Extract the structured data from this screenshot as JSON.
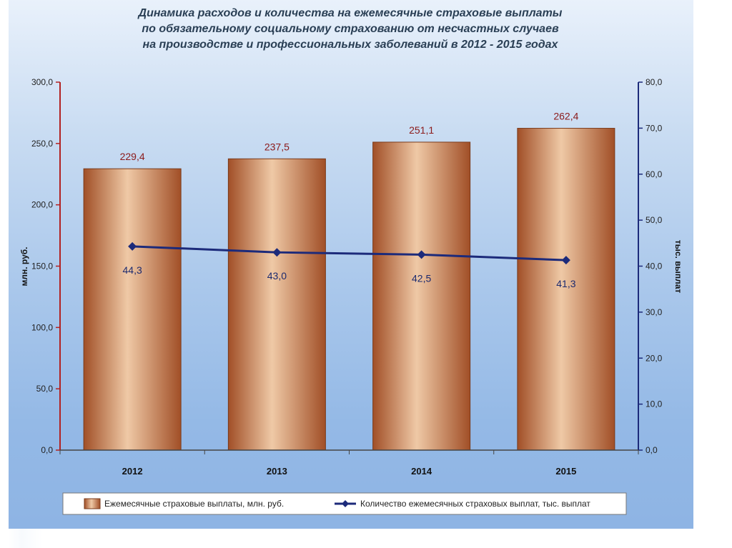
{
  "title_lines": [
    "Динамика расходов и количества на ежемесячные страховые выплаты",
    "по обязательному социальному страхованию от несчастных случаев",
    "на производстве и профессиональных заболеваний в 2012 - 2015 годах"
  ],
  "colors": {
    "bar_light": "#efc9a6",
    "bar_dark": "#a14f27",
    "line": "#1c2a7a",
    "left_axis": "#b22222",
    "right_axis": "#1c2a7a"
  },
  "chart_data": {
    "type": "bar",
    "categories": [
      "2012",
      "2013",
      "2014",
      "2015"
    ],
    "series": [
      {
        "name": "Ежемесячные страховые выплаты, млн. руб.",
        "type": "bar",
        "axis": "left",
        "values": [
          229.4,
          237.5,
          251.1,
          262.4
        ],
        "labels": [
          "229,4",
          "237,5",
          "251,1",
          "262,4"
        ]
      },
      {
        "name": "Количество ежемесячных страховых выплат, тыс. выплат",
        "type": "line",
        "axis": "right",
        "values": [
          44.3,
          43.0,
          42.5,
          41.3
        ],
        "labels": [
          "44,3",
          "43,0",
          "42,5",
          "41,3"
        ]
      }
    ],
    "left_axis": {
      "label": "млн. руб.",
      "ylim": [
        0,
        300
      ],
      "ticks": [
        "0,0",
        "50,0",
        "100,0",
        "150,0",
        "200,0",
        "250,0",
        "300,0"
      ]
    },
    "right_axis": {
      "label": "тыс. выплат",
      "ylim": [
        0,
        80
      ],
      "ticks": [
        "0,0",
        "10,0",
        "20,0",
        "30,0",
        "40,0",
        "50,0",
        "60,0",
        "70,0",
        "80,0"
      ]
    },
    "grid": false,
    "legend_position": "bottom"
  }
}
